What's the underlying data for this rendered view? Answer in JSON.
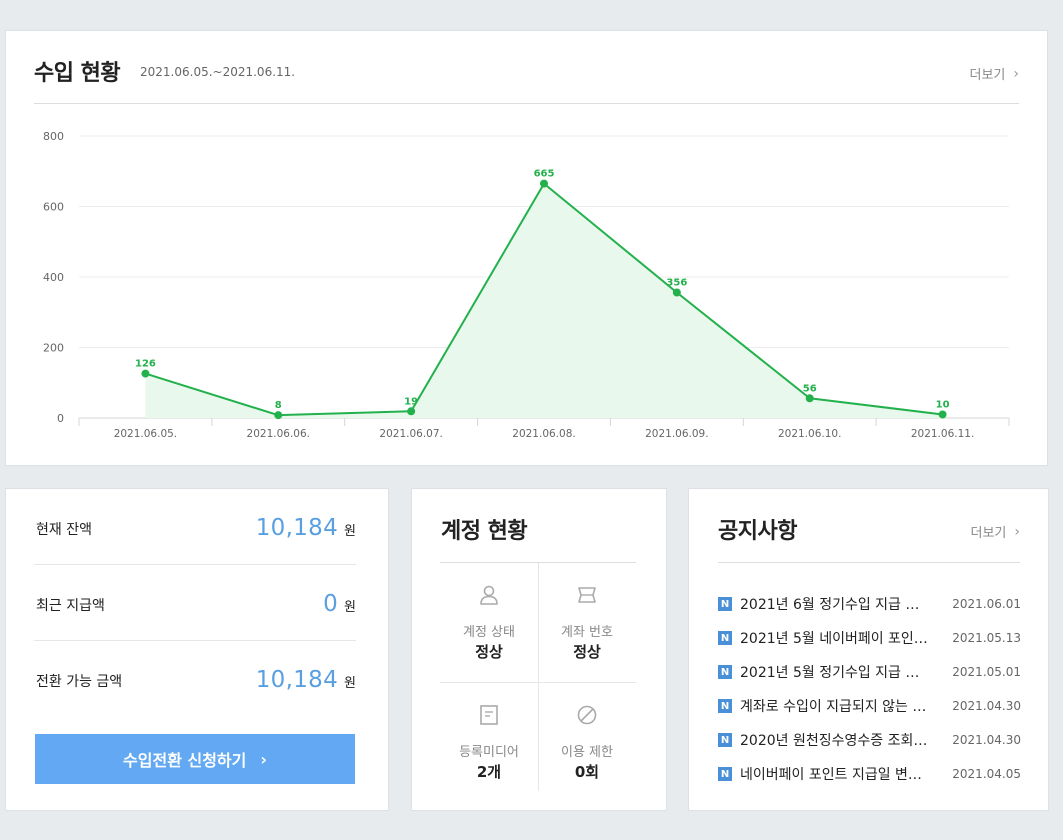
{
  "revenue": {
    "title": "수입 현황",
    "date_range": "2021.06.05.~2021.06.11.",
    "more_label": "더보기"
  },
  "chart_data": {
    "type": "area",
    "categories": [
      "2021.06.05.",
      "2021.06.06.",
      "2021.06.07.",
      "2021.06.08.",
      "2021.06.09.",
      "2021.06.10.",
      "2021.06.11."
    ],
    "values": [
      126,
      8,
      19,
      665,
      356,
      56,
      10
    ],
    "data_labels": [
      "126",
      "8",
      "19",
      "665",
      "356",
      "56",
      "10"
    ],
    "y_ticks": [
      "0",
      "200",
      "400",
      "600",
      "800"
    ],
    "ylim": [
      0,
      800
    ],
    "grid": true,
    "line_color": "#22b14c",
    "fill_color": "#e9f8ec"
  },
  "balance": {
    "rows": [
      {
        "label": "현재 잔액",
        "amount": "10,184",
        "unit": "원"
      },
      {
        "label": "최근 지급액",
        "amount": "0",
        "unit": "원"
      },
      {
        "label": "전환 가능 금액",
        "amount": "10,184",
        "unit": "원"
      }
    ],
    "button_label": "수입전환 신청하기",
    "button_chevron": "›"
  },
  "account": {
    "title": "계정 현황",
    "cells": [
      {
        "label": "계정 상태",
        "value": "정상",
        "icon": "person-icon"
      },
      {
        "label": "계좌 번호",
        "value": "정상",
        "icon": "card-icon"
      },
      {
        "label": "등록미디어",
        "value": "2개",
        "icon": "document-icon"
      },
      {
        "label": "이용 제한",
        "value": "0회",
        "icon": "prohibited-icon"
      }
    ]
  },
  "notices": {
    "title": "공지사항",
    "more_label": "더보기",
    "badge": "N",
    "items": [
      {
        "title": "2021년 6월 정기수입 지급 일…",
        "date": "2021.06.01"
      },
      {
        "title": "2021년 5월 네이버페이 포인…",
        "date": "2021.05.13"
      },
      {
        "title": "2021년 5월 정기수입 지급 일…",
        "date": "2021.05.01"
      },
      {
        "title": "계좌로 수입이 지급되지 않는 …",
        "date": "2021.04.30"
      },
      {
        "title": "2020년 원천징수영수증 조회…",
        "date": "2021.04.30"
      },
      {
        "title": "네이버페이 포인트 지급일 변…",
        "date": "2021.04.05"
      }
    ]
  }
}
